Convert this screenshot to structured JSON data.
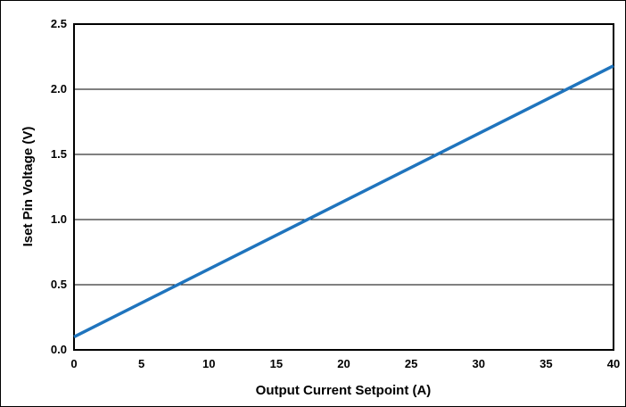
{
  "chart_data": {
    "type": "line",
    "title": "",
    "xlabel": "Output Current Setpoint (A)",
    "ylabel": "Iset Pin Voltage (V)",
    "xlim": [
      0,
      40
    ],
    "ylim": [
      0,
      2.5
    ],
    "x_ticks": [
      "0",
      "5",
      "10",
      "15",
      "20",
      "25",
      "30",
      "35",
      "40"
    ],
    "y_ticks": [
      "0.0",
      "0.5",
      "1.0",
      "1.5",
      "2.0",
      "2.5"
    ],
    "grid": "horizontal",
    "legend": "none",
    "series": [
      {
        "x": [
          0,
          40
        ],
        "y": [
          0.1,
          2.18
        ],
        "color": "#1f74bd"
      }
    ]
  }
}
